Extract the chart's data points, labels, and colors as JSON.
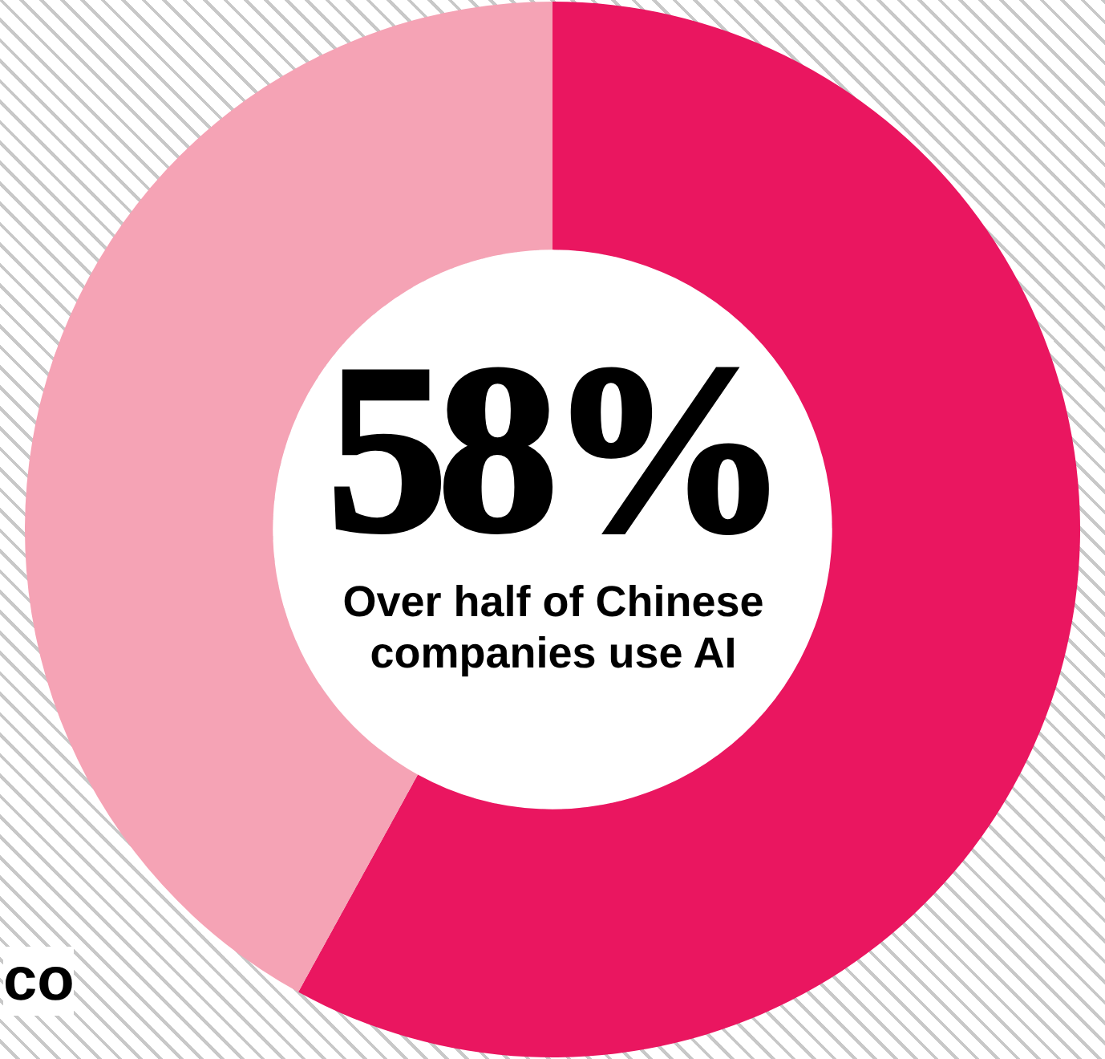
{
  "chart_data": {
    "type": "donut",
    "title": "Over half of Chinese companies use AI",
    "categories": [
      null,
      null
    ],
    "values": [
      58,
      42
    ],
    "colors": [
      "#ea1660",
      "#f5a3b5"
    ],
    "value_labels": [
      "58%",
      null
    ],
    "legend": false,
    "annotations": [
      "co"
    ]
  }
}
